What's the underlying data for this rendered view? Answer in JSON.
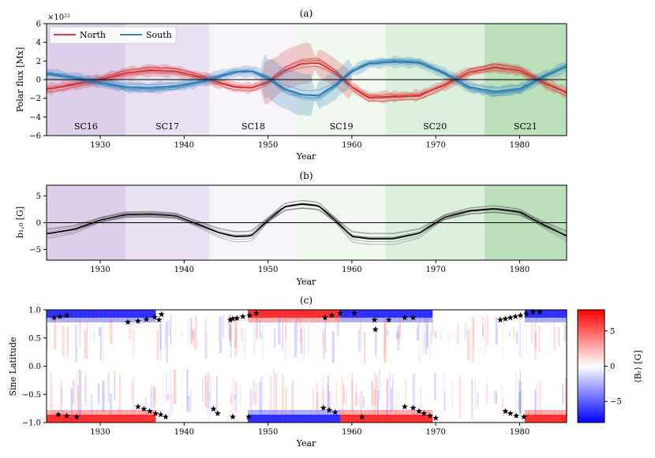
{
  "colors": {
    "north": "#d62728",
    "south": "#1f77b4",
    "line": "#000000"
  },
  "cycles": [
    {
      "label": "SC16",
      "start": 1923.6,
      "end": 1933.0,
      "color": "#9467bd",
      "alpha": 0.32
    },
    {
      "label": "SC17",
      "start": 1933.0,
      "end": 1943.0,
      "color": "#9467bd",
      "alpha": 0.2
    },
    {
      "label": "SC18",
      "start": 1943.0,
      "end": 1953.5,
      "color": "#9467bd",
      "alpha": 0.07
    },
    {
      "label": "SC19",
      "start": 1953.5,
      "end": 1964.0,
      "color": "#2ca02c",
      "alpha": 0.07
    },
    {
      "label": "SC20",
      "start": 1964.0,
      "end": 1975.8,
      "color": "#2ca02c",
      "alpha": 0.16
    },
    {
      "label": "SC21",
      "start": 1975.8,
      "end": 1985.6,
      "color": "#2ca02c",
      "alpha": 0.32
    }
  ],
  "chart_data": [
    {
      "id": "a",
      "type": "line",
      "title": "(a)",
      "xlabel": "Year",
      "ylabel": "Polar flux [Mx]",
      "offset_label": "×10²²",
      "xlim": [
        1923.6,
        1985.6
      ],
      "ylim": [
        -6,
        6
      ],
      "xticks": [
        "1930",
        "1940",
        "1950",
        "1960",
        "1970",
        "1980"
      ],
      "yticks": [
        "−6",
        "−4",
        "−2",
        "0",
        "2",
        "4",
        "6"
      ],
      "legend": {
        "position": "top-left",
        "north_label": "North",
        "south_label": "South"
      },
      "x": [
        1924,
        1927,
        1930,
        1933,
        1936,
        1939,
        1942,
        1944,
        1946,
        1948,
        1950,
        1952,
        1954,
        1956,
        1958,
        1960,
        1962,
        1965,
        1968,
        1971,
        1974,
        1977,
        1980,
        1983,
        1985.6
      ],
      "series": [
        {
          "name": "North",
          "values": [
            -1.0,
            -0.5,
            0.0,
            0.7,
            1.0,
            0.9,
            0.3,
            -0.3,
            -0.8,
            -0.9,
            -0.3,
            1.0,
            1.7,
            1.8,
            0.8,
            -0.8,
            -1.9,
            -1.8,
            -1.7,
            -0.6,
            0.8,
            1.3,
            1.0,
            -0.4,
            -1.4
          ]
        },
        {
          "name": "South",
          "values": [
            0.6,
            0.2,
            -0.3,
            -0.8,
            -0.9,
            -0.7,
            -0.2,
            0.3,
            0.8,
            0.9,
            0.2,
            -1.0,
            -1.6,
            -1.7,
            -0.6,
            0.9,
            1.7,
            1.9,
            1.8,
            0.7,
            -0.8,
            -1.3,
            -1.0,
            0.4,
            1.4
          ]
        }
      ]
    },
    {
      "id": "b",
      "type": "line",
      "title": "(b)",
      "xlabel": "Year",
      "ylabel": "b₁,₀ [G]",
      "xlim": [
        1923.6,
        1985.6
      ],
      "ylim": [
        -7,
        7
      ],
      "xticks": [
        "1930",
        "1940",
        "1950",
        "1960",
        "1970",
        "1980"
      ],
      "yticks": [
        "−5",
        "0",
        "5"
      ],
      "x": [
        1924,
        1927,
        1930,
        1933,
        1936,
        1939,
        1942,
        1944,
        1946,
        1948,
        1950,
        1952,
        1954,
        1956,
        1958,
        1960,
        1962,
        1965,
        1968,
        1971,
        1974,
        1977,
        1980,
        1983,
        1985.6
      ],
      "series": [
        {
          "name": "b10",
          "values": [
            -2.0,
            -1.2,
            0.5,
            1.5,
            1.6,
            1.3,
            -0.5,
            -1.8,
            -2.6,
            -2.5,
            0.5,
            3.0,
            3.5,
            3.2,
            0.5,
            -2.6,
            -3.0,
            -3.0,
            -2.0,
            1.0,
            2.2,
            2.6,
            2.0,
            -0.5,
            -2.5
          ]
        }
      ]
    },
    {
      "id": "c",
      "type": "heatmap",
      "title": "(c)",
      "xlabel": "Year",
      "ylabel": "Sine Latitude",
      "xlim": [
        1923.6,
        1985.6
      ],
      "ylim": [
        -1,
        1
      ],
      "xticks": [
        "1930",
        "1940",
        "1950",
        "1960",
        "1970",
        "1980"
      ],
      "yticks": [
        "−1.0",
        "−0.5",
        "0.0",
        "0.5",
        "1.0"
      ],
      "colorbar": {
        "label": "⟨Bᵣ⟩ [G]",
        "ticks": [
          "5",
          "0",
          "−5"
        ],
        "range": [
          -8,
          8
        ]
      },
      "polar_sign_north": [
        {
          "start": 1923.6,
          "end": 1936.5,
          "sign": -1
        },
        {
          "start": 1936.5,
          "end": 1947.5,
          "sign": 0
        },
        {
          "start": 1947.5,
          "end": 1958.5,
          "sign": 1
        },
        {
          "start": 1958.5,
          "end": 1969.5,
          "sign": -1
        },
        {
          "start": 1969.5,
          "end": 1980.5,
          "sign": 0
        },
        {
          "start": 1980.5,
          "end": 1985.6,
          "sign": -1
        }
      ],
      "polar_sign_south": [
        {
          "start": 1923.6,
          "end": 1936.5,
          "sign": 1
        },
        {
          "start": 1936.5,
          "end": 1947.5,
          "sign": 0
        },
        {
          "start": 1947.5,
          "end": 1958.5,
          "sign": -1
        },
        {
          "start": 1958.5,
          "end": 1969.5,
          "sign": 1
        },
        {
          "start": 1969.5,
          "end": 1980.5,
          "sign": 0
        },
        {
          "start": 1980.5,
          "end": 1985.6,
          "sign": 1
        }
      ],
      "stars": [
        [
          1924.5,
          0.86
        ],
        [
          1925.2,
          0.88
        ],
        [
          1926.0,
          0.9
        ],
        [
          1933.3,
          0.78
        ],
        [
          1934.5,
          0.8
        ],
        [
          1935.5,
          0.83
        ],
        [
          1936.5,
          0.87
        ],
        [
          1937.3,
          0.92
        ],
        [
          1937.0,
          0.82
        ],
        [
          1945.5,
          0.82
        ],
        [
          1946.3,
          0.85
        ],
        [
          1947.0,
          0.88
        ],
        [
          1947.8,
          0.9
        ],
        [
          1948.6,
          0.94
        ],
        [
          1945.8,
          0.84
        ],
        [
          1956.8,
          0.86
        ],
        [
          1957.6,
          0.9
        ],
        [
          1958.6,
          0.94
        ],
        [
          1960.3,
          0.94
        ],
        [
          1962.7,
          0.82
        ],
        [
          1962.8,
          0.65
        ],
        [
          1964.4,
          0.82
        ],
        [
          1966.3,
          0.86
        ],
        [
          1967.3,
          0.86
        ],
        [
          1977.7,
          0.82
        ],
        [
          1978.3,
          0.84
        ],
        [
          1978.9,
          0.86
        ],
        [
          1979.5,
          0.88
        ],
        [
          1980.1,
          0.9
        ],
        [
          1980.8,
          0.93
        ],
        [
          1981.6,
          0.96
        ],
        [
          1982.4,
          0.96
        ],
        [
          1925.0,
          -0.86
        ],
        [
          1926.0,
          -0.88
        ],
        [
          1927.2,
          -0.9
        ],
        [
          1934.5,
          -0.72
        ],
        [
          1935.2,
          -0.76
        ],
        [
          1935.9,
          -0.8
        ],
        [
          1936.6,
          -0.84
        ],
        [
          1937.2,
          -0.86
        ],
        [
          1937.8,
          -0.9
        ],
        [
          1943.5,
          -0.76
        ],
        [
          1944.0,
          -0.84
        ],
        [
          1945.8,
          -0.9
        ],
        [
          1947.7,
          -0.9
        ],
        [
          1956.6,
          -0.74
        ],
        [
          1957.3,
          -0.78
        ],
        [
          1958.0,
          -0.82
        ],
        [
          1961.2,
          -0.9
        ],
        [
          1966.3,
          -0.72
        ],
        [
          1967.3,
          -0.74
        ],
        [
          1968.0,
          -0.8
        ],
        [
          1968.6,
          -0.84
        ],
        [
          1969.3,
          -0.88
        ],
        [
          1970.0,
          -0.92
        ],
        [
          1978.3,
          -0.8
        ],
        [
          1978.9,
          -0.84
        ],
        [
          1979.6,
          -0.88
        ],
        [
          1980.5,
          -0.9
        ]
      ]
    }
  ]
}
